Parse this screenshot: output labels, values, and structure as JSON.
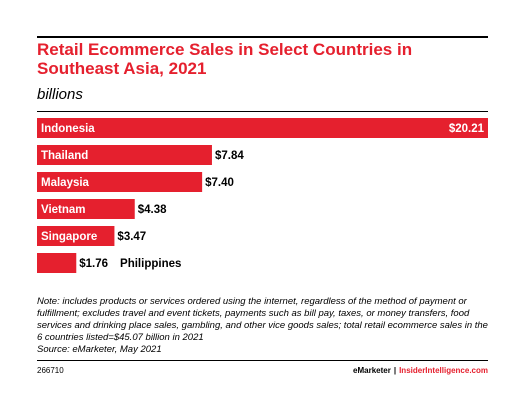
{
  "header": {
    "title": "Retail Ecommerce Sales in Select Countries in Southeast Asia, 2021",
    "subtitle": "billions"
  },
  "chart_data": {
    "type": "bar",
    "orientation": "horizontal",
    "categories": [
      "Indonesia",
      "Thailand",
      "Malaysia",
      "Vietnam",
      "Singapore",
      "Philippines"
    ],
    "values": [
      20.21,
      7.84,
      7.4,
      4.38,
      3.47,
      1.76
    ],
    "value_labels": [
      "$20.21",
      "$7.84",
      "$7.40",
      "$4.38",
      "$3.47",
      "$1.76"
    ],
    "title": "Retail Ecommerce Sales in Select Countries in Southeast Asia, 2021",
    "subtitle": "billions",
    "bar_color": "#e5202e",
    "grid": false
  },
  "note": "Note: includes products or services ordered using the internet, regardless of the method of payment or fulfillment; excludes travel and event tickets, payments such as bill pay, taxes, or money transfers, food services and drinking place sales, gambling, and other vice goods sales; total retail ecommerce sales in the 6 countries listed=$45.07 billion in 2021",
  "source": "Source: eMarketer, May 2021",
  "footer": {
    "id": "266710",
    "brand": "eMarketer",
    "separator": "|",
    "site": "InsiderIntelligence.com"
  }
}
